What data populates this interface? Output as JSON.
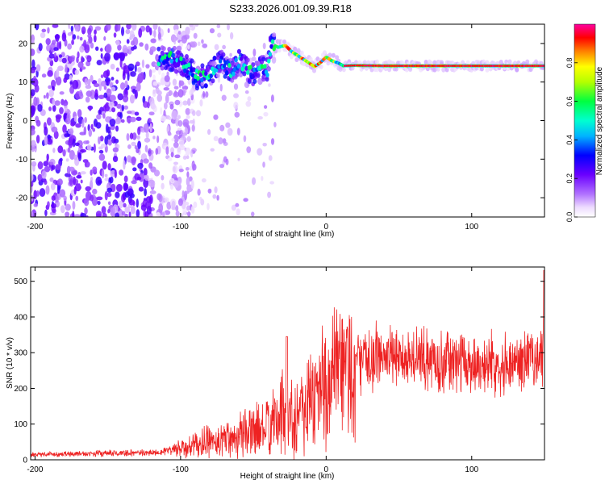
{
  "title": "S233.2026.001.09.39.R18",
  "chart_data": [
    {
      "type": "heatmap",
      "name": "spectrogram",
      "xlabel": "Height of straight line (km)",
      "ylabel": "Frequency (Hz)",
      "xlim": [
        -203,
        150
      ],
      "ylim": [
        -25,
        25
      ],
      "xticks": [
        -200,
        -100,
        0,
        100
      ],
      "xtick_labels": [
        "-200",
        "-100",
        "0",
        "100"
      ],
      "yticks": [
        -20,
        -10,
        0,
        10,
        20
      ],
      "ytick_labels": [
        "-20",
        "-10",
        "0",
        "10",
        "20"
      ],
      "trace": {
        "x": [
          -115,
          -105,
          -95,
          -88,
          -80,
          -72,
          -65,
          -60,
          -55,
          -50,
          -45,
          -40,
          -38,
          -33,
          -28,
          -24,
          -20,
          -16,
          -12,
          -8,
          -4,
          0,
          4,
          8,
          12,
          20,
          40,
          60,
          80,
          100,
          120,
          150
        ],
        "freq": [
          16,
          16,
          14,
          11,
          12,
          15,
          13,
          15,
          14,
          12,
          14,
          13,
          20,
          19,
          19.5,
          18,
          17,
          16,
          15,
          14,
          15,
          16.5,
          15.5,
          15,
          14.2,
          14.3,
          14.2,
          14.2,
          14.2,
          14.2,
          14.2,
          14.2
        ]
      },
      "noise_region_x": [
        -203,
        -105
      ],
      "colorbar": {
        "label": "Normalized spectral amplitude",
        "ticks": [
          "0.0",
          "0.2",
          "0.4",
          "0.6",
          "0.8"
        ],
        "tick_values": [
          0.0,
          0.2,
          0.4,
          0.6,
          0.8
        ],
        "range": [
          0,
          1
        ]
      }
    },
    {
      "type": "line",
      "name": "snr",
      "xlabel": "Height of straight line (km)",
      "ylabel": "SNR (10 * v/v)",
      "xlim": [
        -203,
        150
      ],
      "ylim": [
        0,
        540
      ],
      "xticks": [
        -200,
        -100,
        0,
        100
      ],
      "xtick_labels": [
        "-200",
        "-100",
        "0",
        "100"
      ],
      "yticks": [
        0,
        100,
        200,
        300,
        400,
        500
      ],
      "ytick_labels": [
        "0",
        "100",
        "200",
        "300",
        "400",
        "500"
      ],
      "color": "#ee2222",
      "envelope": {
        "x": [
          -203,
          -150,
          -120,
          -100,
          -80,
          -60,
          -50,
          -40,
          -32,
          -30,
          -28,
          -25,
          -20,
          -15,
          -10,
          -5,
          0,
          5,
          10,
          15,
          20,
          30,
          40,
          50,
          60,
          80,
          100,
          120,
          140,
          150
        ],
        "y": [
          15,
          18,
          20,
          30,
          50,
          70,
          80,
          90,
          110,
          150,
          110,
          120,
          140,
          155,
          175,
          190,
          210,
          225,
          240,
          255,
          270,
          285,
          290,
          290,
          285,
          275,
          270,
          270,
          280,
          295
        ]
      },
      "spikes": [
        {
          "x": -27,
          "y": 345
        },
        {
          "x": 150,
          "y": 530
        }
      ]
    }
  ]
}
